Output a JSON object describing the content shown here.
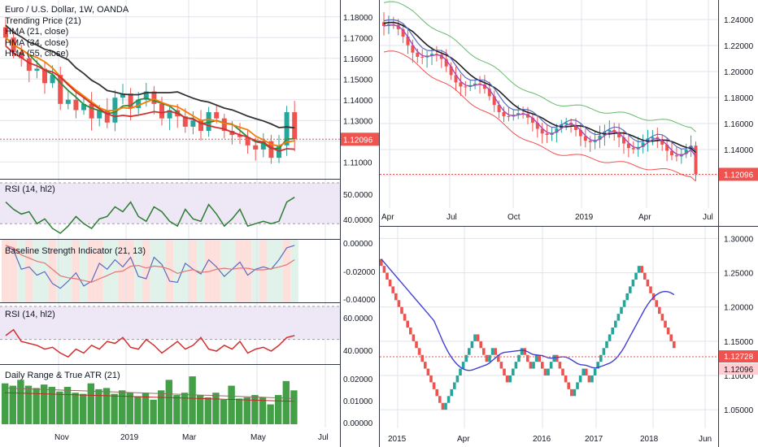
{
  "colors": {
    "up": "#26a69a",
    "down": "#ef5350",
    "accent": "#ef5350",
    "grid": "#e0e3eb",
    "text": "#131722"
  },
  "left": {
    "legend": [
      "Euro / U.S. Dollar, 1W, OANDA",
      "Trending Price (21)",
      "HMA (21, close)",
      "HMA (34, close)",
      "HMA (55, close)"
    ],
    "price_ticks": [
      "1.18000",
      "1.17000",
      "1.16000",
      "1.15000",
      "1.14000",
      "1.13000",
      "1.12000",
      "1.11000"
    ],
    "last_price": "1.12096",
    "rsi1": {
      "title": "RSI (14, hl2)",
      "ticks": [
        "50.0000",
        "40.0000"
      ]
    },
    "bsi": {
      "title": "Baseline Strength Indicator (21, 13)",
      "ticks": [
        "0.00000",
        "-0.02000",
        "-0.04000"
      ]
    },
    "rsi2": {
      "title": "RSI (14, hl2)",
      "ticks": [
        "60.0000",
        "40.0000"
      ]
    },
    "atr": {
      "title": "Daily Range & True ATR (21)",
      "ticks": [
        "0.02000",
        "0.01000",
        "0.00000"
      ]
    },
    "time_labels": [
      "Nov",
      "2019",
      "Mar",
      "May",
      "Jul"
    ]
  },
  "topright": {
    "price_ticks": [
      "1.24000",
      "1.22000",
      "1.20000",
      "1.18000",
      "1.16000",
      "1.14000",
      "1.12000"
    ],
    "last_price": "1.12096",
    "time_labels": [
      "Apr",
      "Jul",
      "Oct",
      "2019",
      "Apr",
      "Jul"
    ]
  },
  "botright": {
    "price_ticks": [
      "1.30000",
      "1.25000",
      "1.20000",
      "1.15000",
      "1.10000",
      "1.05000"
    ],
    "last_price_a": "1.12728",
    "last_price_b": "1.12096",
    "time_labels": [
      "2015",
      "Apr",
      "2016",
      "2017",
      "2018",
      "Jun"
    ]
  },
  "chart_data": [
    {
      "type": "candlestick",
      "panel": "left-main",
      "title": "Euro / U.S. Dollar, 1W, OANDA",
      "ylim": [
        1.105,
        1.185
      ],
      "series": [
        {
          "name": "Trending Price (21)"
        },
        {
          "name": "HMA (21, close)"
        },
        {
          "name": "HMA (34, close)"
        },
        {
          "name": "HMA (55, close)"
        }
      ],
      "last": 1.12096
    },
    {
      "type": "line",
      "panel": "rsi-1",
      "title": "RSI (14, hl2)",
      "ylim": [
        34,
        56
      ],
      "values": [
        48,
        45,
        43,
        44,
        39,
        41,
        37,
        35,
        38,
        42,
        39,
        37,
        41,
        42,
        46,
        44,
        48,
        42,
        40,
        46,
        44,
        40,
        38,
        45,
        41,
        40,
        47,
        43,
        38,
        41,
        45,
        38,
        39,
        40,
        39,
        40,
        48,
        50
      ]
    },
    {
      "type": "line",
      "panel": "bsi",
      "title": "Baseline Strength Indicator (21, 13)",
      "ylim": [
        -0.045,
        0.002
      ],
      "values": [
        0.0,
        -0.004,
        -0.02,
        -0.018,
        -0.025,
        -0.022,
        -0.032,
        -0.036,
        -0.03,
        -0.023,
        -0.034,
        -0.03,
        -0.015,
        -0.02,
        -0.012,
        -0.018,
        -0.01,
        -0.026,
        -0.028,
        -0.01,
        -0.016,
        -0.03,
        -0.031,
        -0.015,
        -0.02,
        -0.024,
        -0.012,
        -0.018,
        -0.026,
        -0.02,
        -0.014,
        -0.025,
        -0.02,
        -0.018,
        -0.02,
        -0.012,
        -0.002,
        0.0
      ]
    },
    {
      "type": "line",
      "panel": "rsi-2",
      "title": "RSI (14, hl2)",
      "ylim": [
        34,
        62
      ],
      "values": [
        47,
        50,
        44,
        43,
        42,
        40,
        41,
        38,
        36,
        40,
        38,
        42,
        40,
        44,
        43,
        46,
        41,
        40,
        45,
        42,
        38,
        41,
        44,
        40,
        42,
        46,
        40,
        39,
        42,
        40,
        44,
        38,
        40,
        41,
        39,
        42,
        46,
        47
      ]
    },
    {
      "type": "bar",
      "panel": "atr",
      "title": "Daily Range & True ATR (21)",
      "ylim": [
        0,
        0.024
      ],
      "values": [
        0.0175,
        0.0165,
        0.019,
        0.0165,
        0.0155,
        0.017,
        0.016,
        0.014,
        0.016,
        0.0135,
        0.013,
        0.0175,
        0.015,
        0.0155,
        0.013,
        0.0145,
        0.0135,
        0.012,
        0.0135,
        0.0105,
        0.0145,
        0.019,
        0.0125,
        0.0135,
        0.0205,
        0.0125,
        0.0115,
        0.0135,
        0.0105,
        0.0165,
        0.011,
        0.0115,
        0.0125,
        0.0115,
        0.0085,
        0.0125,
        0.0185,
        0.0145
      ]
    },
    {
      "type": "candlestick",
      "panel": "top-right",
      "ylim": [
        1.1,
        1.25
      ],
      "last": 1.12096
    },
    {
      "type": "renko",
      "panel": "bottom-right",
      "ylim": [
        1.03,
        1.31
      ],
      "last": [
        1.12728,
        1.12096
      ]
    }
  ]
}
